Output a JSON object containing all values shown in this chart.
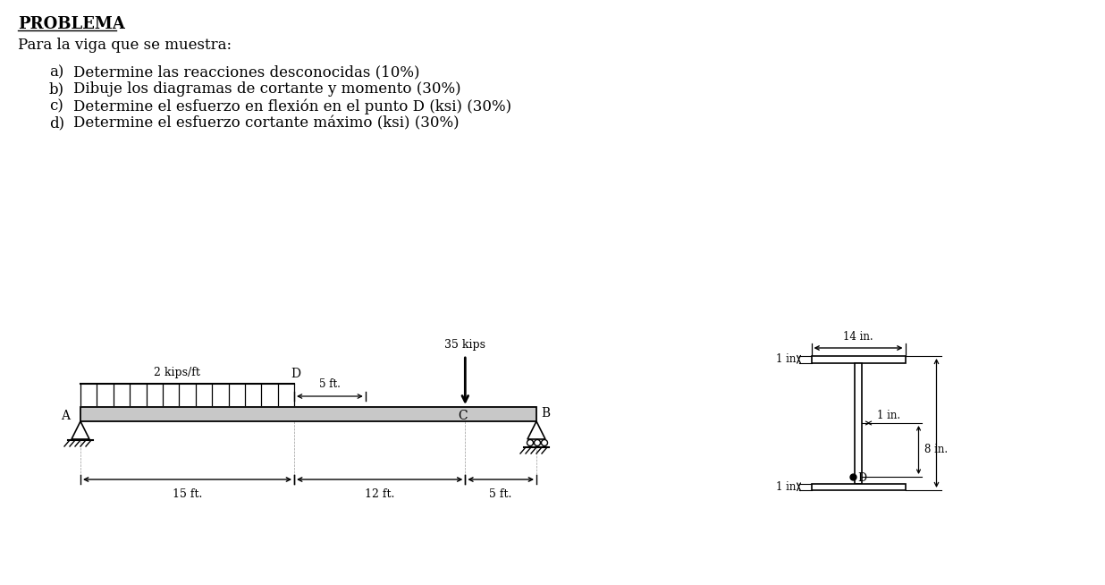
{
  "title": "PROBLEMA",
  "intro": "Para la viga que se muestra:",
  "items": [
    "Determine las reacciones desconocidas (10%)",
    "Dibuje los diagramas de cortante y momento (30%)",
    "Determine el esfuerzo en flexión en el punto D (ksi) (30%)",
    "Determine el esfuerzo cortante máximo (ksi) (30%)"
  ],
  "item_labels": [
    "a)",
    "b)",
    "c)",
    "d)"
  ],
  "background": "#ffffff",
  "text_color": "#000000"
}
